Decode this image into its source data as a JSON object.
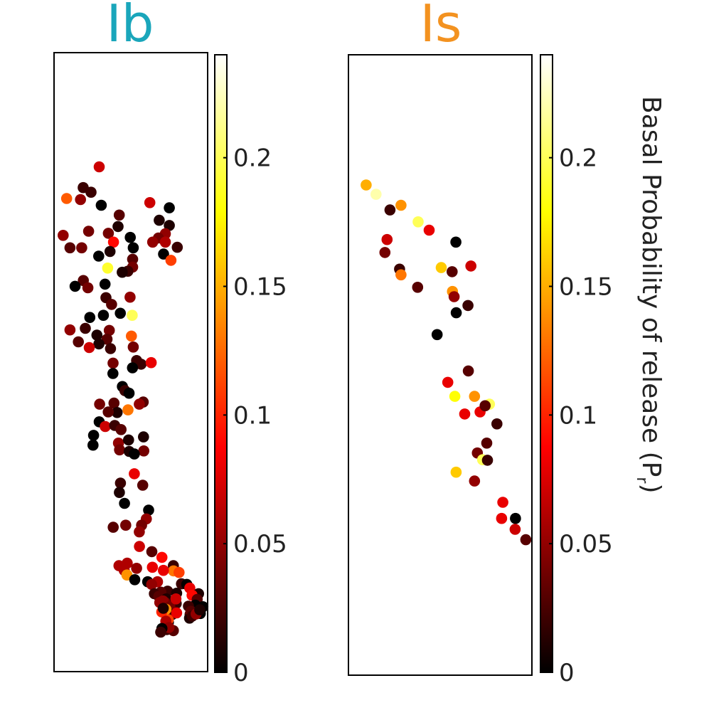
{
  "chart_data": {
    "type": "scatter",
    "colormap": "hot",
    "color_range": [
      0,
      0.24
    ],
    "colorbar": {
      "label": "Basal Probability of release (P",
      "label_sub": "r",
      "label_close": ")",
      "ticks": [
        0,
        0.05,
        0.1,
        0.15,
        0.2
      ],
      "tick_labels": [
        "0",
        "0.05",
        "0.1",
        "0.15",
        "0.2"
      ]
    },
    "panels": [
      {
        "title": "Ib",
        "title_color": "#1aa6bb",
        "xlim": [
          0,
          100
        ],
        "ylim": [
          0,
          100
        ],
        "points": [
          [
            29,
            89.8,
            0.07
          ],
          [
            18.4,
            85.8,
            0.02
          ],
          [
            23.6,
            84.9,
            0.02
          ],
          [
            7.4,
            83.7,
            0.12
          ],
          [
            16.6,
            83.5,
            0.05
          ],
          [
            62.6,
            82.9,
            0.07
          ],
          [
            30.4,
            82.4,
            0.0
          ],
          [
            75.5,
            81.9,
            0.0
          ],
          [
            42.3,
            80.5,
            0.03
          ],
          [
            68.8,
            79.5,
            0.01
          ],
          [
            75.5,
            78.5,
            0.01
          ],
          [
            41.5,
            78.3,
            0.01
          ],
          [
            22,
            77.4,
            0.04
          ],
          [
            35.1,
            77,
            0.04
          ],
          [
            72.9,
            76.9,
            0.05
          ],
          [
            5.1,
            76.6,
            0.05
          ],
          [
            49.6,
            76.2,
            0.0
          ],
          [
            68.3,
            76.1,
            0.04
          ],
          [
            38.5,
            75.3,
            0.09
          ],
          [
            64.5,
            75.3,
            0.05
          ],
          [
            72.9,
            75.3,
            0.06
          ],
          [
            9.6,
            74.2,
            0.03
          ],
          [
            17.4,
            74.2,
            0.04
          ],
          [
            80.8,
            74.3,
            0.02
          ],
          [
            51.6,
            74.2,
            0.0
          ],
          [
            36.2,
            73.5,
            0.01
          ],
          [
            71.7,
            73,
            0.0
          ],
          [
            28.7,
            72.6,
            0.0
          ],
          [
            51.2,
            72,
            0.03
          ],
          [
            76.6,
            71.8,
            0.11
          ],
          [
            51.2,
            70.5,
            0.04
          ],
          [
            34.6,
            70.3,
            0.19
          ],
          [
            48,
            69.7,
            0.02
          ],
          [
            44.3,
            69.5,
            0.01
          ],
          [
            18.5,
            67.9,
            0.03
          ],
          [
            32.9,
            67.2,
            0.0
          ],
          [
            13,
            66.8,
            0.0
          ],
          [
            21.5,
            66.5,
            0.04
          ],
          [
            49.5,
            64.7,
            0.05
          ],
          [
            33.5,
            64.6,
            0.02
          ],
          [
            37.2,
            63.3,
            0.03
          ],
          [
            43,
            61.6,
            0.0
          ],
          [
            50.9,
            61.2,
            0.2
          ],
          [
            31.8,
            61.2,
            0.0
          ],
          [
            22.8,
            60.8,
            0.0
          ],
          [
            19.8,
            58.7,
            0.02
          ],
          [
            9.6,
            58.4,
            0.05
          ],
          [
            35.7,
            58.3,
            0.04
          ],
          [
            50.4,
            57.2,
            0.12
          ],
          [
            27.5,
            57.4,
            0.01
          ],
          [
            34.2,
            56.6,
            0.03
          ],
          [
            15.2,
            56.1,
            0.03
          ],
          [
            28.8,
            55.7,
            0.01
          ],
          [
            51.6,
            55.1,
            0.04
          ],
          [
            22.4,
            55,
            0.07
          ],
          [
            36.5,
            54.8,
            0.02
          ],
          [
            53.8,
            52.5,
            0.02
          ],
          [
            56.8,
            51.8,
            0.02
          ],
          [
            51.1,
            51.1,
            0.0
          ],
          [
            63.5,
            52.1,
            0.08
          ],
          [
            38.2,
            52,
            0.04
          ],
          [
            38.1,
            50,
            0.0
          ],
          [
            44.4,
            47.5,
            0.0
          ],
          [
            46.1,
            46.7,
            0.02
          ],
          [
            48.8,
            46.2,
            0.0
          ],
          [
            58.2,
            44.5,
            0.03
          ],
          [
            38.8,
            44.3,
            0.03
          ],
          [
            48.1,
            43,
            0.13
          ],
          [
            29.3,
            44.1,
            0.04
          ],
          [
            55.6,
            44.1,
            0.05
          ],
          [
            40.9,
            42.5,
            0.01
          ],
          [
            35,
            42.6,
            0.03
          ],
          [
            29,
            40.7,
            0.0
          ],
          [
            33,
            39.8,
            0.07
          ],
          [
            39.3,
            40,
            0.02
          ],
          [
            43.5,
            39.2,
            0.03
          ],
          [
            25.3,
            38.1,
            0.0
          ],
          [
            24.9,
            36.2,
            0.0
          ],
          [
            41.8,
            36.6,
            0.05
          ],
          [
            48.5,
            37.2,
            0.01
          ],
          [
            58.4,
            37.8,
            0.01
          ],
          [
            42.5,
            35.3,
            0.04
          ],
          [
            48.9,
            35,
            0.01
          ],
          [
            58.6,
            35.1,
            0.04
          ],
          [
            52.3,
            34.5,
            0.0
          ],
          [
            52.3,
            30.7,
            0.08
          ],
          [
            43.1,
            28.9,
            0.02
          ],
          [
            57.9,
            28.5,
            0.03
          ],
          [
            42.4,
            27.1,
            0.01
          ],
          [
            45.8,
            25,
            0.0
          ],
          [
            61.8,
            23.7,
            0.0
          ],
          [
            60.3,
            22,
            0.05
          ],
          [
            38.3,
            20.4,
            0.03
          ],
          [
            46.6,
            20.8,
            0.04
          ],
          [
            57.1,
            20.8,
            0.04
          ],
          [
            55.6,
            19.5,
            0.05
          ],
          [
            55.7,
            16.7,
            0.07
          ],
          [
            63.9,
            15.7,
            0.03
          ],
          [
            70.6,
            14.6,
            0.09
          ],
          [
            47.6,
            13.5,
            0.06
          ],
          [
            42.1,
            13,
            0.06
          ],
          [
            53.8,
            12.5,
            0.05
          ],
          [
            64.3,
            12.7,
            0.08
          ],
          [
            78.2,
            13,
            0.02
          ],
          [
            45.6,
            12.1,
            0.06
          ],
          [
            78.3,
            12,
            0.13
          ],
          [
            71.6,
            12.1,
            0.08
          ],
          [
            82,
            11.7,
            0.11
          ],
          [
            47.4,
            11.2,
            0.14
          ],
          [
            52.6,
            10.3,
            0.0
          ],
          [
            61.2,
            9.9,
            0.0
          ],
          [
            67.7,
            9.9,
            0.06
          ],
          [
            83.6,
            9.5,
            0.02
          ],
          [
            63.8,
            9.4,
            0.05
          ],
          [
            87.1,
            9.4,
            0.0
          ],
          [
            89.1,
            8.7,
            0.08
          ],
          [
            74.4,
            8.1,
            0.02
          ],
          [
            69.9,
            7.9,
            0.03
          ],
          [
            80.4,
            7.7,
            0.01
          ],
          [
            65.6,
            7.6,
            0.02
          ],
          [
            94.9,
            7.6,
            0.01
          ],
          [
            90.6,
            7.3,
            0.09
          ],
          [
            68.6,
            7.1,
            0.03
          ],
          [
            73.6,
            6.6,
            0.01
          ],
          [
            94,
            6.5,
            0.03
          ],
          [
            72.7,
            5.9,
            0.04
          ],
          [
            80.1,
            5.7,
            0.02
          ],
          [
            69.2,
            5.9,
            0.05
          ],
          [
            92.8,
            5.4,
            0.0
          ],
          [
            88.2,
            5.2,
            0.02
          ],
          [
            97.8,
            5.1,
            0.0
          ],
          [
            71.3,
            6.2,
            0.05
          ],
          [
            75.9,
            5.1,
            0.04
          ],
          [
            79.9,
            6.6,
            0.07
          ],
          [
            72.9,
            3.8,
            0.0
          ],
          [
            77.4,
            3.6,
            0.01
          ],
          [
            89.3,
            3.6,
            0.03
          ],
          [
            95,
            3.9,
            0.0
          ],
          [
            96.1,
            3.8,
            0.0
          ],
          [
            72.6,
            1.3,
            0.0
          ],
          [
            73.9,
            0.7,
            0.02
          ],
          [
            78.2,
            0.5,
            0.03
          ],
          [
            74.9,
            2.1,
            0.0
          ],
          [
            74.1,
            3.0,
            0.02
          ],
          [
            74.8,
            2.6,
            0.11
          ],
          [
            73.3,
            4.6,
            0.14
          ],
          [
            70.5,
            4.1,
            0.1
          ],
          [
            73.2,
            2.3,
            0.06
          ],
          [
            75.3,
            1.1,
            0.05
          ],
          [
            80.4,
            3.9,
            0.08
          ],
          [
            88.9,
            2.9,
            0.01
          ],
          [
            89.9,
            4.2,
            0.03
          ],
          [
            90.8,
            3.3,
            0.02
          ],
          [
            93.3,
            3.7,
            0.05
          ],
          [
            95.7,
            4.5,
            0.01
          ],
          [
            70.6,
            0.9,
            0.0
          ],
          [
            71.5,
            4.8,
            0.01
          ],
          [
            69.8,
            0.2,
            0.02
          ]
        ]
      },
      {
        "title": "Is",
        "title_color": "#f39220",
        "xlim": [
          0,
          100
        ],
        "ylim": [
          0,
          100
        ],
        "points": [
          [
            9,
            86.3,
            0.15
          ],
          [
            14.5,
            84.5,
            0.22
          ],
          [
            22.2,
            81.5,
            0.02
          ],
          [
            28.3,
            82.4,
            0.14
          ],
          [
            37.8,
            79.2,
            0.2
          ],
          [
            43.9,
            77.6,
            0.08
          ],
          [
            20.6,
            75.8,
            0.07
          ],
          [
            58.7,
            75.3,
            0.0
          ],
          [
            19.4,
            73.3,
            0.04
          ],
          [
            50.6,
            70.4,
            0.16
          ],
          [
            67,
            70.7,
            0.07
          ],
          [
            27.5,
            70.1,
            0.02
          ],
          [
            56.6,
            69.6,
            0.03
          ],
          [
            28.3,
            69.0,
            0.13
          ],
          [
            37.5,
            66.6,
            0.03
          ],
          [
            56.8,
            65.8,
            0.14
          ],
          [
            57.7,
            64.8,
            0.05
          ],
          [
            65.4,
            63.1,
            0.02
          ],
          [
            58.9,
            61.7,
            0.0
          ],
          [
            48.3,
            57.5,
            0.0
          ],
          [
            65.6,
            50.5,
            0.03
          ],
          [
            54.2,
            48.3,
            0.08
          ],
          [
            58.1,
            45.6,
            0.18
          ],
          [
            69,
            45.6,
            0.14
          ],
          [
            77.3,
            44.1,
            0.2
          ],
          [
            63.6,
            42.2,
            0.08
          ],
          [
            72.1,
            42.6,
            0.08
          ],
          [
            74.9,
            43.8,
            0.03
          ],
          [
            81.4,
            40.3,
            0.02
          ],
          [
            75.8,
            36.6,
            0.03
          ],
          [
            70.6,
            34.7,
            0.04
          ],
          [
            73.5,
            33.4,
            0.2
          ],
          [
            76.2,
            33.3,
            0.02
          ],
          [
            58.8,
            31.0,
            0.16
          ],
          [
            69,
            29.3,
            0.05
          ],
          [
            84.7,
            25.2,
            0.08
          ],
          [
            84,
            22.1,
            0.08
          ],
          [
            91.7,
            22.1,
            0.0
          ],
          [
            91.5,
            20.0,
            0.07
          ],
          [
            97.4,
            18.0,
            0.03
          ]
        ]
      }
    ]
  }
}
